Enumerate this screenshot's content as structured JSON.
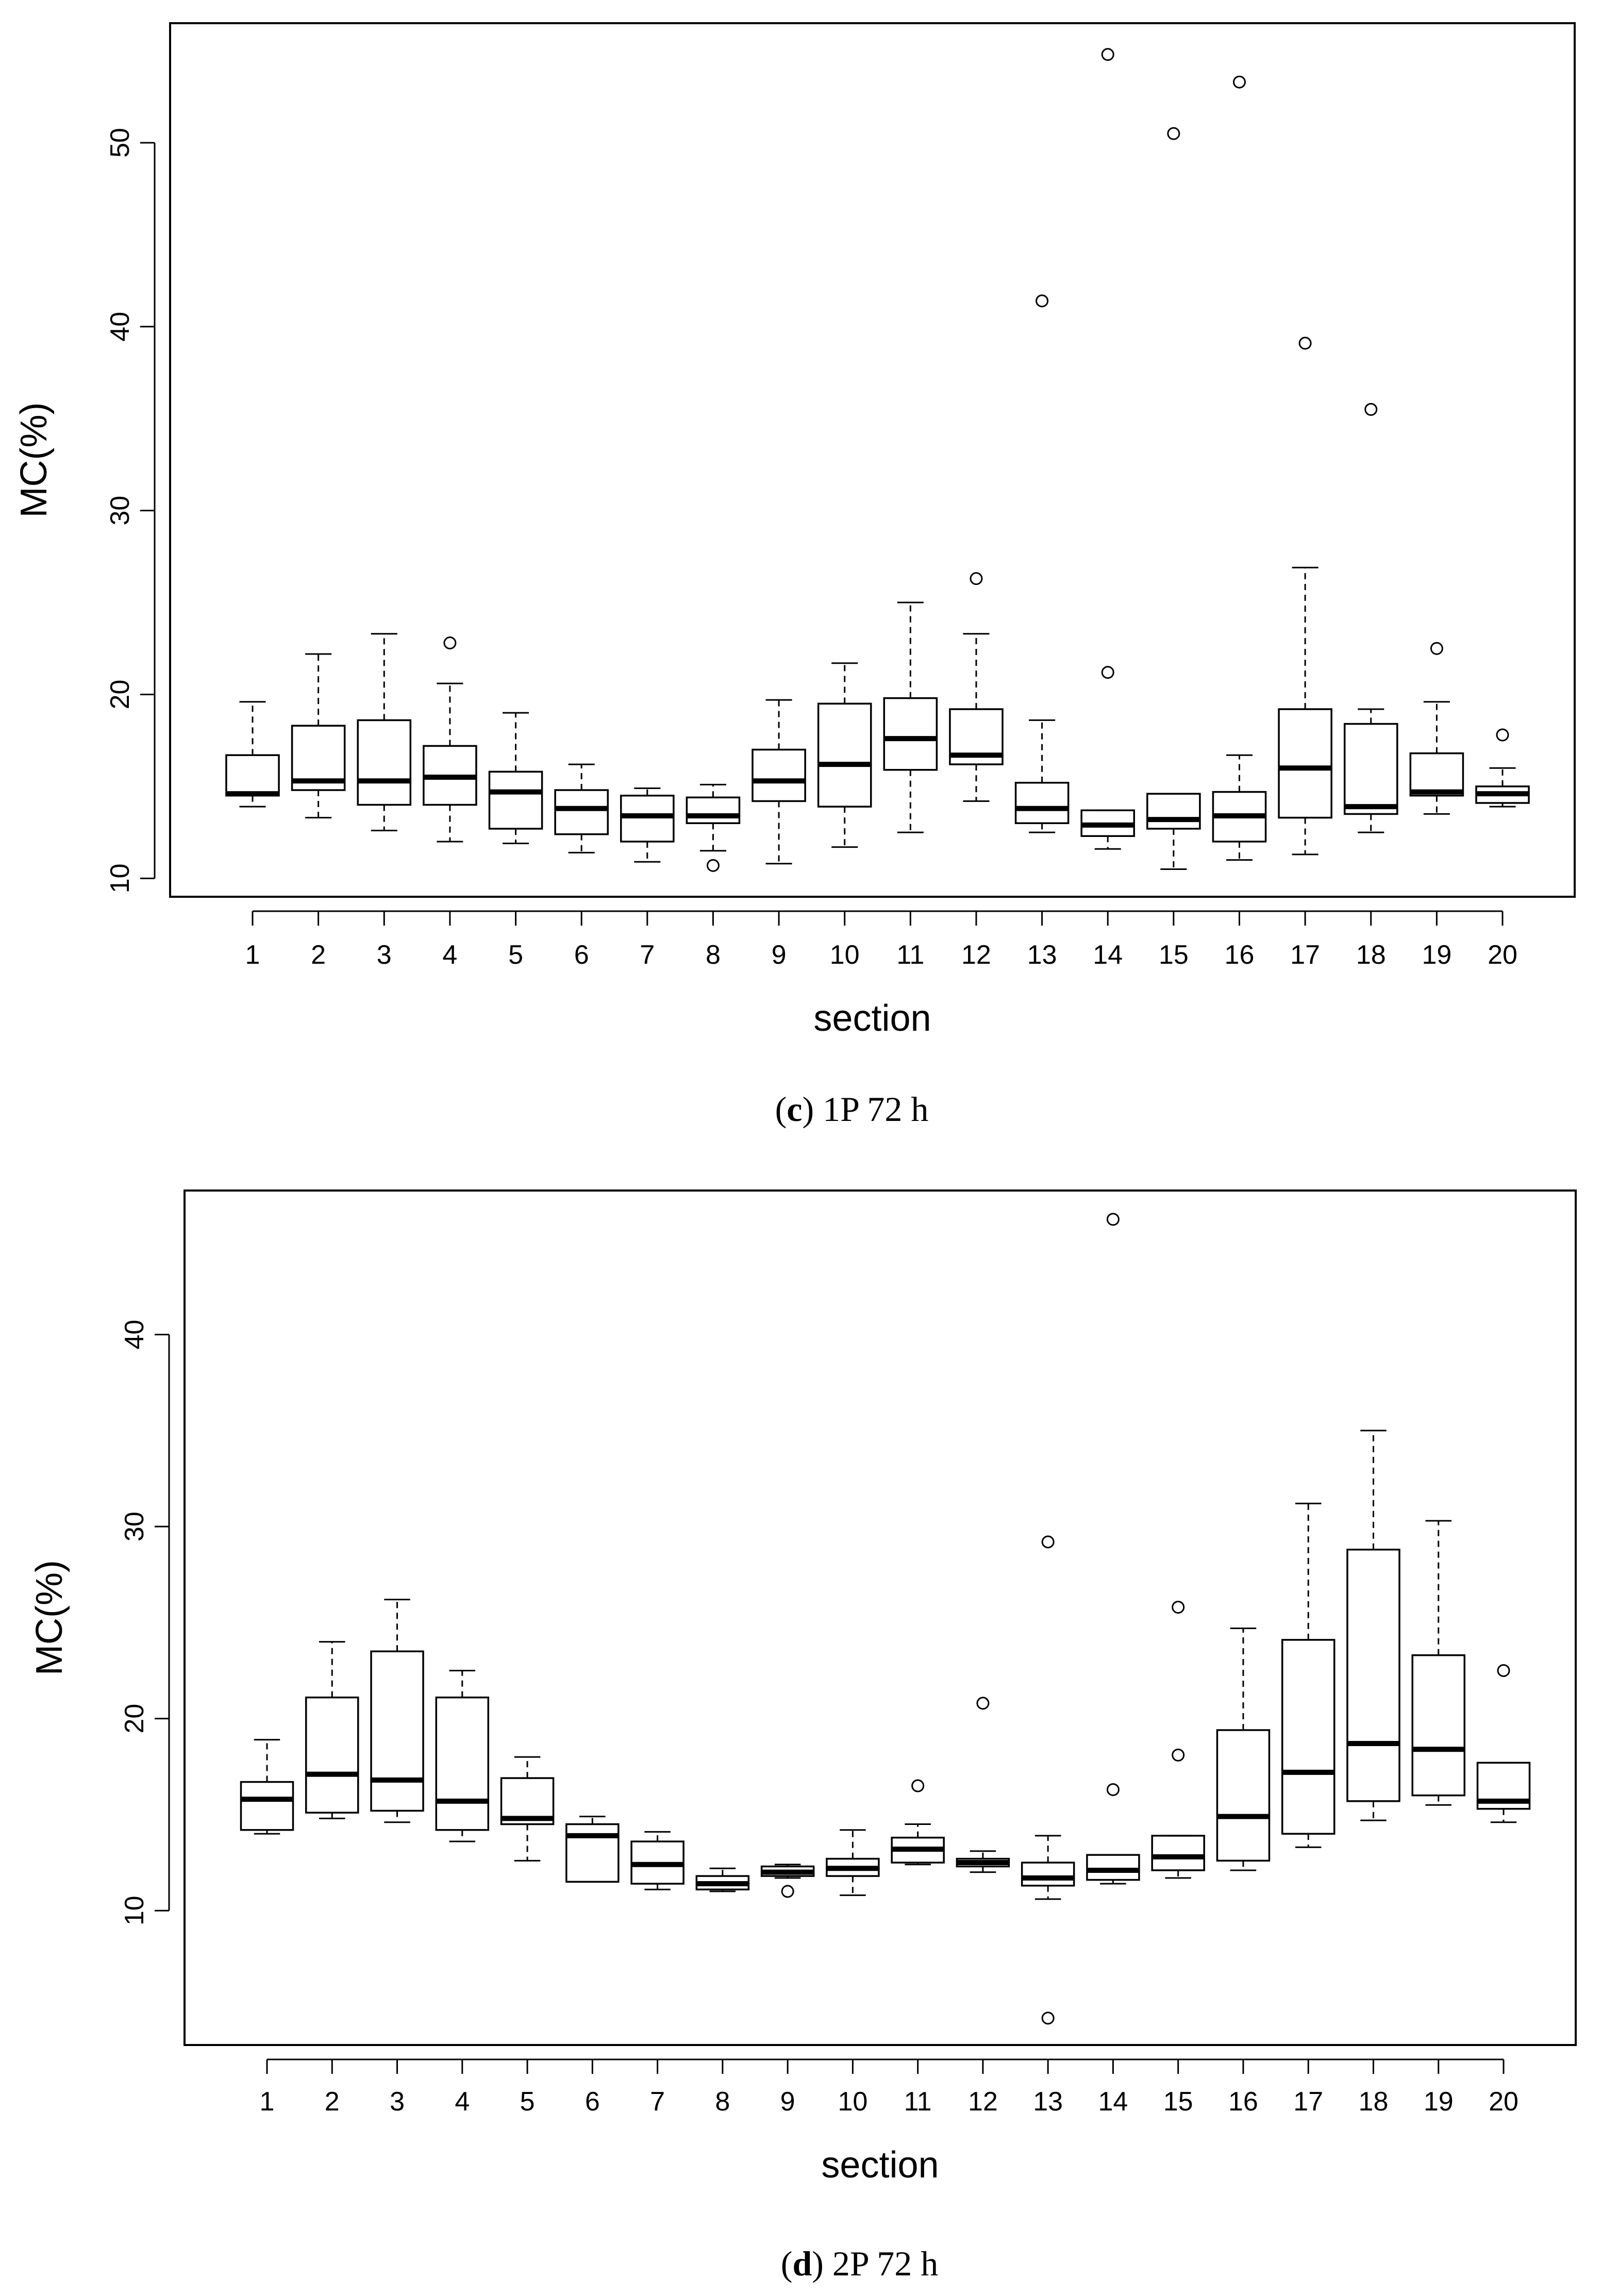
{
  "chart_data": [
    {
      "type": "boxplot",
      "caption_letter": "c",
      "caption_text": "1P 72 h",
      "xlabel": "section",
      "ylabel": "MC(%)",
      "ylim": [
        9,
        56.5
      ],
      "yticks": [
        10,
        20,
        30,
        40,
        50
      ],
      "categories": [
        "1",
        "2",
        "3",
        "4",
        "5",
        "6",
        "7",
        "8",
        "9",
        "10",
        "11",
        "12",
        "13",
        "14",
        "15",
        "16",
        "17",
        "18",
        "19",
        "20"
      ],
      "boxes": [
        {
          "min": 13.9,
          "q1": 14.5,
          "median": 14.6,
          "q3": 16.7,
          "max": 19.6,
          "outliers": []
        },
        {
          "min": 13.3,
          "q1": 14.8,
          "median": 15.3,
          "q3": 18.3,
          "max": 22.2,
          "outliers": []
        },
        {
          "min": 12.6,
          "q1": 14.0,
          "median": 15.3,
          "q3": 18.6,
          "max": 23.3,
          "outliers": []
        },
        {
          "min": 12.0,
          "q1": 14.0,
          "median": 15.5,
          "q3": 17.2,
          "max": 20.6,
          "outliers": [
            22.8
          ]
        },
        {
          "min": 11.9,
          "q1": 12.7,
          "median": 14.7,
          "q3": 15.8,
          "max": 19.0,
          "outliers": []
        },
        {
          "min": 11.4,
          "q1": 12.4,
          "median": 13.8,
          "q3": 14.8,
          "max": 16.2,
          "outliers": []
        },
        {
          "min": 10.9,
          "q1": 12.0,
          "median": 13.4,
          "q3": 14.5,
          "max": 14.9,
          "outliers": []
        },
        {
          "min": 11.5,
          "q1": 13.0,
          "median": 13.4,
          "q3": 14.4,
          "max": 15.1,
          "outliers": [
            10.7
          ]
        },
        {
          "min": 10.8,
          "q1": 14.2,
          "median": 15.3,
          "q3": 17.0,
          "max": 19.7,
          "outliers": []
        },
        {
          "min": 11.7,
          "q1": 13.9,
          "median": 16.2,
          "q3": 19.5,
          "max": 21.7,
          "outliers": []
        },
        {
          "min": 12.5,
          "q1": 15.9,
          "median": 17.6,
          "q3": 19.8,
          "max": 25.0,
          "outliers": []
        },
        {
          "min": 14.2,
          "q1": 16.2,
          "median": 16.7,
          "q3": 19.2,
          "max": 23.3,
          "outliers": [
            26.3
          ]
        },
        {
          "min": 12.5,
          "q1": 13.0,
          "median": 13.8,
          "q3": 15.2,
          "max": 18.6,
          "outliers": [
            41.4
          ]
        },
        {
          "min": 11.6,
          "q1": 12.3,
          "median": 12.9,
          "q3": 13.7,
          "max": 13.7,
          "outliers": [
            21.2,
            54.8
          ]
        },
        {
          "min": 10.5,
          "q1": 12.7,
          "median": 13.2,
          "q3": 14.6,
          "max": 14.6,
          "outliers": [
            50.5
          ]
        },
        {
          "min": 11.0,
          "q1": 12.0,
          "median": 13.4,
          "q3": 14.7,
          "max": 16.7,
          "outliers": [
            53.3
          ]
        },
        {
          "min": 11.3,
          "q1": 13.3,
          "median": 16.0,
          "q3": 19.2,
          "max": 26.9,
          "outliers": [
            39.1
          ]
        },
        {
          "min": 12.5,
          "q1": 13.5,
          "median": 13.9,
          "q3": 18.4,
          "max": 19.2,
          "outliers": [
            35.5
          ]
        },
        {
          "min": 13.5,
          "q1": 14.5,
          "median": 14.7,
          "q3": 16.8,
          "max": 19.6,
          "outliers": [
            22.5
          ]
        },
        {
          "min": 13.9,
          "q1": 14.1,
          "median": 14.6,
          "q3": 15.0,
          "max": 16.0,
          "outliers": [
            17.8
          ]
        }
      ]
    },
    {
      "type": "boxplot",
      "caption_letter": "d",
      "caption_text": "2P 72 h",
      "xlabel": "section",
      "ylabel": "MC(%)",
      "ylim": [
        3,
        47.5
      ],
      "yticks": [
        10,
        20,
        30,
        40
      ],
      "categories": [
        "1",
        "2",
        "3",
        "4",
        "5",
        "6",
        "7",
        "8",
        "9",
        "10",
        "11",
        "12",
        "13",
        "14",
        "15",
        "16",
        "17",
        "18",
        "19",
        "20"
      ],
      "boxes": [
        {
          "min": 14.0,
          "q1": 14.2,
          "median": 15.8,
          "q3": 16.7,
          "max": 18.9,
          "outliers": []
        },
        {
          "min": 14.8,
          "q1": 15.1,
          "median": 17.1,
          "q3": 21.1,
          "max": 24.0,
          "outliers": []
        },
        {
          "min": 14.6,
          "q1": 15.2,
          "median": 16.8,
          "q3": 23.5,
          "max": 26.2,
          "outliers": []
        },
        {
          "min": 13.6,
          "q1": 14.2,
          "median": 15.7,
          "q3": 21.1,
          "max": 22.5,
          "outliers": []
        },
        {
          "min": 12.6,
          "q1": 14.5,
          "median": 14.8,
          "q3": 16.9,
          "max": 18.0,
          "outliers": []
        },
        {
          "min": 11.5,
          "q1": 11.5,
          "median": 13.9,
          "q3": 14.5,
          "max": 14.9,
          "outliers": []
        },
        {
          "min": 11.1,
          "q1": 11.4,
          "median": 12.4,
          "q3": 13.6,
          "max": 14.1,
          "outliers": []
        },
        {
          "min": 11.0,
          "q1": 11.1,
          "median": 11.4,
          "q3": 11.8,
          "max": 12.2,
          "outliers": []
        },
        {
          "min": 11.7,
          "q1": 11.8,
          "median": 12.0,
          "q3": 12.3,
          "max": 12.4,
          "outliers": [
            11.0
          ]
        },
        {
          "min": 10.8,
          "q1": 11.8,
          "median": 12.2,
          "q3": 12.7,
          "max": 14.2,
          "outliers": []
        },
        {
          "min": 12.4,
          "q1": 12.5,
          "median": 13.2,
          "q3": 13.8,
          "max": 14.5,
          "outliers": [
            16.5
          ]
        },
        {
          "min": 12.0,
          "q1": 12.3,
          "median": 12.5,
          "q3": 12.7,
          "max": 13.1,
          "outliers": [
            20.8
          ]
        },
        {
          "min": 10.6,
          "q1": 11.3,
          "median": 11.7,
          "q3": 12.5,
          "max": 13.9,
          "outliers": [
            4.4,
            29.2
          ]
        },
        {
          "min": 11.4,
          "q1": 11.6,
          "median": 12.1,
          "q3": 12.9,
          "max": 12.9,
          "outliers": [
            16.3,
            46.0
          ]
        },
        {
          "min": 11.7,
          "q1": 12.1,
          "median": 12.8,
          "q3": 13.9,
          "max": 13.9,
          "outliers": [
            18.1,
            25.8
          ]
        },
        {
          "min": 12.1,
          "q1": 12.6,
          "median": 14.9,
          "q3": 19.4,
          "max": 24.7,
          "outliers": []
        },
        {
          "min": 13.3,
          "q1": 14.0,
          "median": 17.2,
          "q3": 24.1,
          "max": 31.2,
          "outliers": []
        },
        {
          "min": 14.7,
          "q1": 15.7,
          "median": 18.7,
          "q3": 28.8,
          "max": 35.0,
          "outliers": []
        },
        {
          "min": 15.5,
          "q1": 16.0,
          "median": 18.4,
          "q3": 23.3,
          "max": 30.3,
          "outliers": []
        },
        {
          "min": 14.6,
          "q1": 15.3,
          "median": 15.7,
          "q3": 17.7,
          "max": 17.7,
          "outliers": [
            22.5
          ]
        }
      ]
    }
  ]
}
